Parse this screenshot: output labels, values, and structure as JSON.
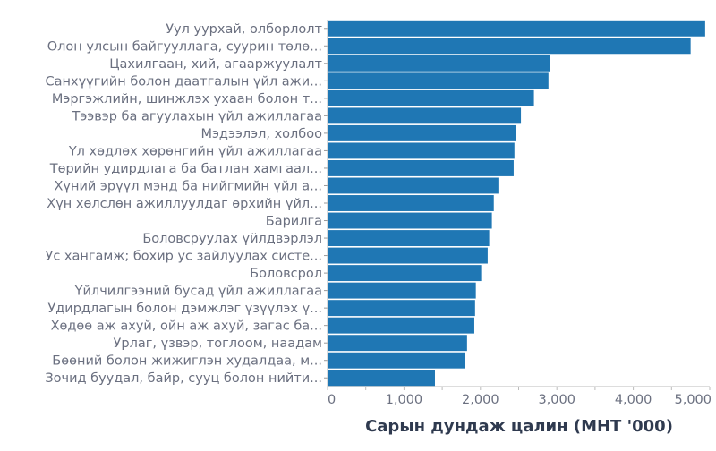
{
  "chart_data": {
    "type": "bar",
    "orientation": "horizontal",
    "title": "",
    "xlabel": "Сарын дундаж цалин (МНТ '000)",
    "ylabel": "",
    "xlim": [
      0,
      5000
    ],
    "xticks": [
      0,
      1000,
      2000,
      3000,
      4000,
      5000
    ],
    "xtick_labels": [
      "0",
      "1,000",
      "2,000",
      "3,000",
      "4,000",
      "5,000"
    ],
    "grid": false,
    "bar_color": "#1f77b4",
    "text_color": "#6b7080",
    "title_color": "#2f3a4f",
    "categories": [
      "Уул уурхай, олборлолт",
      "Олон улсын байгууллага, суурин төлө...",
      "Цахилгаан, хий, агааржуулалт",
      "Санхүүгийн болон даатгалын үйл ажи...",
      "Мэргэжлийн, шинжлэх ухаан болон т...",
      "Тээвэр ба агуулахын үйл ажиллагаа",
      "Мэдээлэл, холбоо",
      "Үл хөдлөх хөрөнгийн үйл ажиллагаа",
      "Төрийн удирдлага ба батлан хамгаал...",
      "Хүний эрүүл мэнд ба нийгмийн үйл а...",
      "Хүн хөлслөн ажиллуулдаг өрхийн үйл...",
      "Барилга",
      "Боловсруулах үйлдвэрлэл",
      "Ус хангамж; бохир ус зайлуулах систе...",
      "Боловсрол",
      "Үйлчилгээний бусад үйл ажиллагаа",
      "Удирдлагын болон дэмжлэг үзүүлэх ү...",
      "Хөдөө аж ахуй, ойн аж ахуй, загас ба...",
      "Урлаг, үзвэр, тоглоом, наадам",
      "Бөөний болон жижиглэн худалдаа, м...",
      "Зочид буудал, байр, сууц болон нийти..."
    ],
    "values": [
      4940,
      4750,
      2910,
      2890,
      2700,
      2530,
      2460,
      2445,
      2435,
      2235,
      2175,
      2150,
      2115,
      2095,
      2010,
      1940,
      1930,
      1920,
      1825,
      1800,
      1405
    ]
  }
}
